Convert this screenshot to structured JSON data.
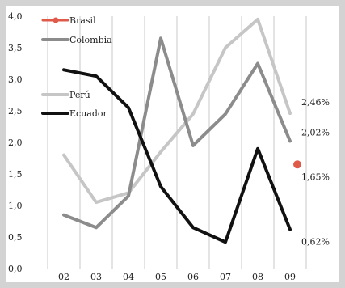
{
  "chart_data": {
    "type": "line",
    "title": "",
    "xlabel": "",
    "ylabel": "",
    "x": [
      "02",
      "03",
      "04",
      "05",
      "06",
      "07",
      "08",
      "09"
    ],
    "y_ticks": [
      "0,0",
      "0,5",
      "1,0",
      "1,5",
      "2,0",
      "2,5",
      "3,0",
      "3,5",
      "4,0"
    ],
    "ylim": [
      0,
      4.0
    ],
    "grid": "vertical",
    "legend_position": "top-left",
    "series": [
      {
        "name": "Brasil",
        "color": "#e05a4a",
        "marker": "dot",
        "values": [
          null,
          null,
          null,
          null,
          null,
          null,
          null,
          1.65
        ]
      },
      {
        "name": "Colombia",
        "color": "#8c8c8c",
        "values": [
          0.85,
          0.65,
          1.15,
          3.65,
          1.95,
          2.45,
          3.25,
          2.02
        ]
      },
      {
        "name": "Perú",
        "color": "#c6c6c6",
        "values": [
          1.8,
          1.05,
          1.2,
          1.85,
          2.45,
          3.5,
          3.95,
          2.46
        ]
      },
      {
        "name": "Ecuador",
        "color": "#111111",
        "values": [
          3.15,
          3.05,
          2.55,
          1.3,
          0.65,
          0.42,
          1.9,
          0.62
        ]
      }
    ],
    "annotations": [
      {
        "series": "Perú",
        "text": "2,46%"
      },
      {
        "series": "Colombia",
        "text": "2,02%"
      },
      {
        "series": "Brasil",
        "text": "1,65%"
      },
      {
        "series": "Ecuador",
        "text": "0,62%"
      }
    ]
  }
}
